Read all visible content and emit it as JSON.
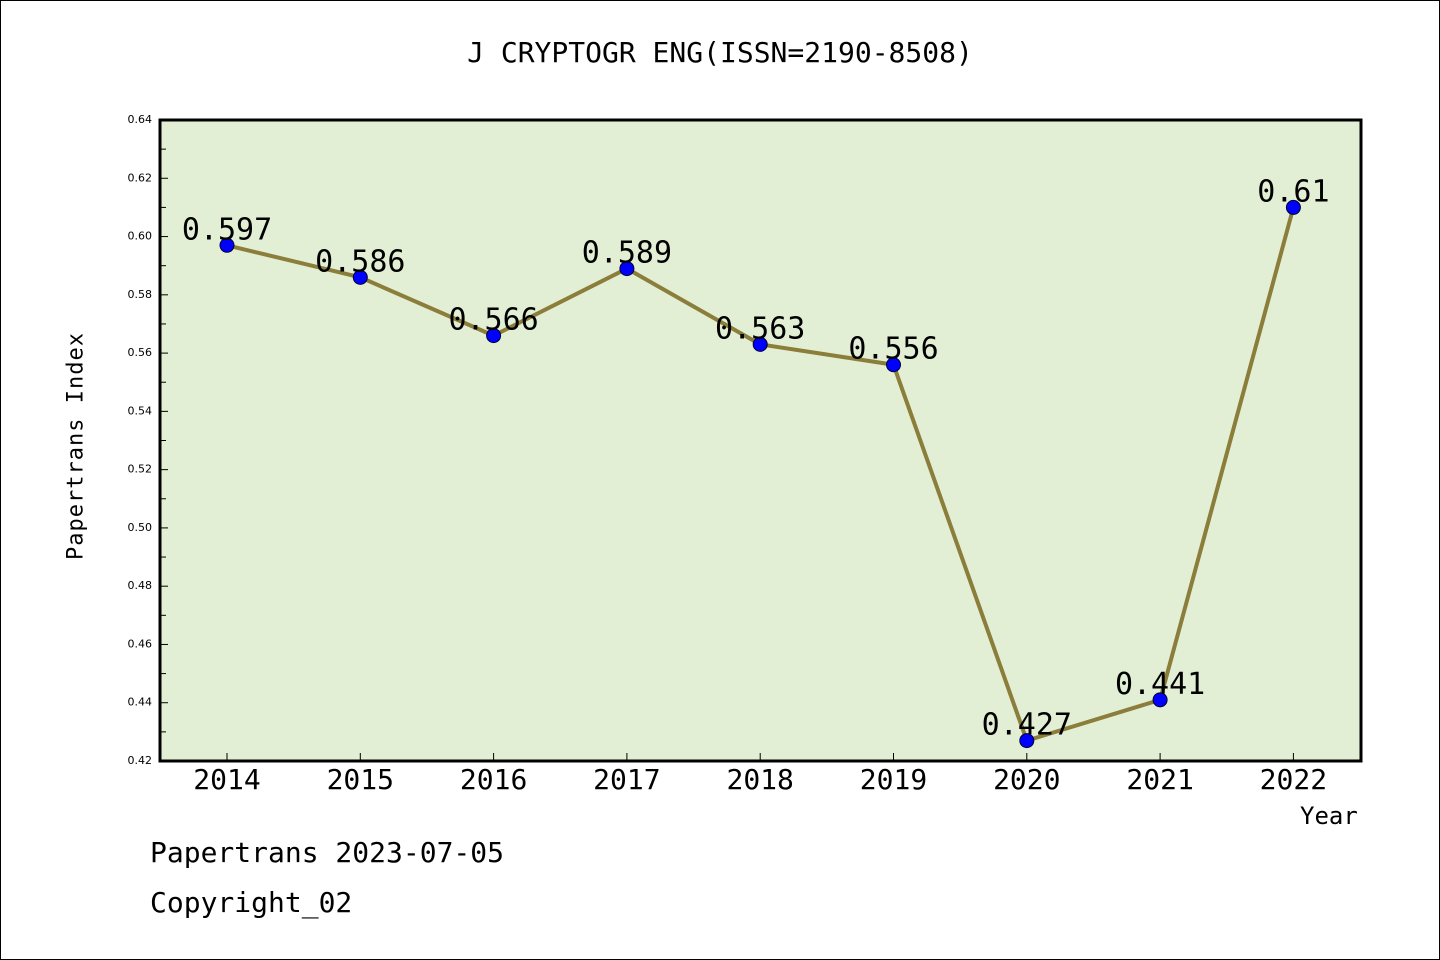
{
  "chart_data": {
    "type": "line",
    "title": "J CRYPTOGR ENG(ISSN=2190-8508)",
    "xlabel": "Year",
    "ylabel": "Papertrans Index",
    "categories": [
      "2014",
      "2015",
      "2016",
      "2017",
      "2018",
      "2019",
      "2020",
      "2021",
      "2022"
    ],
    "series": [
      {
        "values": [
          0.597,
          0.586,
          0.566,
          0.589,
          0.563,
          0.556,
          0.427,
          0.441,
          0.61
        ],
        "labels": [
          "0.597",
          "0.586",
          "0.566",
          "0.589",
          "0.563",
          "0.556",
          "0.427",
          "0.441",
          "0.61"
        ]
      }
    ],
    "ylim": [
      0.42,
      0.64
    ],
    "yticks": [
      "0.42",
      "0.44",
      "0.46",
      "0.48",
      "0.50",
      "0.52",
      "0.54",
      "0.56",
      "0.58",
      "0.60",
      "0.62",
      "0.64"
    ],
    "grid": false,
    "colors": {
      "plot_background": "#e2efd4",
      "line": "#8b7d3a",
      "marker": "#0000ff"
    }
  },
  "footer": {
    "line1": "Papertrans 2023-07-05",
    "line2": "Copyright_02"
  }
}
